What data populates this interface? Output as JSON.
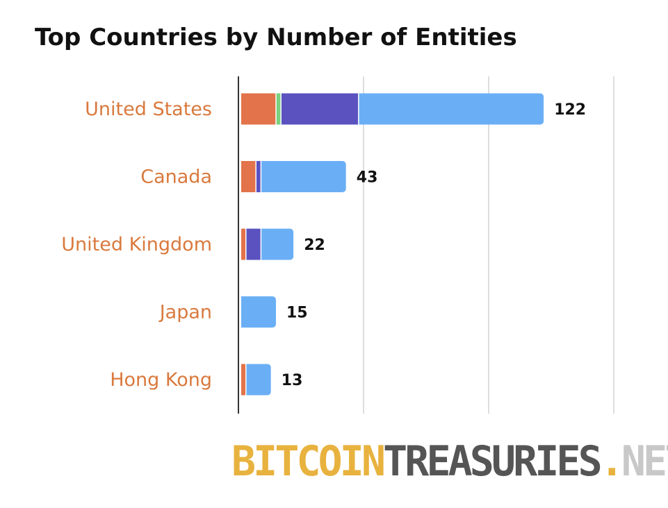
{
  "chart_data": {
    "type": "bar",
    "orientation": "horizontal",
    "stacked": true,
    "title": "Top Countries by Number of Entities",
    "categories": [
      "United States",
      "Canada",
      "United Kingdom",
      "Japan",
      "Hong Kong"
    ],
    "totals": [
      122,
      43,
      22,
      15,
      13
    ],
    "series": [
      {
        "color": "#e3734a",
        "values": [
          15,
          7,
          3,
          0,
          3
        ]
      },
      {
        "color": "#7ad07f",
        "values": [
          2,
          0,
          0,
          0,
          0
        ]
      },
      {
        "color": "#5b52c0",
        "values": [
          31,
          2,
          6,
          0,
          0
        ]
      },
      {
        "color": "#6aaff5",
        "values": [
          74,
          34,
          13,
          15,
          10
        ]
      }
    ],
    "xlim": [
      0,
      150
    ],
    "x_gridlines": [
      0,
      50,
      100,
      150
    ],
    "grid": true,
    "legend": "none",
    "label_color": "#d9793d"
  },
  "branding": {
    "logo_part1": "BITCOIN",
    "logo_part2": "TREASURIES",
    "logo_dot": ".",
    "logo_part3": "NET",
    "colors": {
      "gold": "#e8b23e",
      "dark": "#555555",
      "light": "#c8c8c8"
    }
  }
}
